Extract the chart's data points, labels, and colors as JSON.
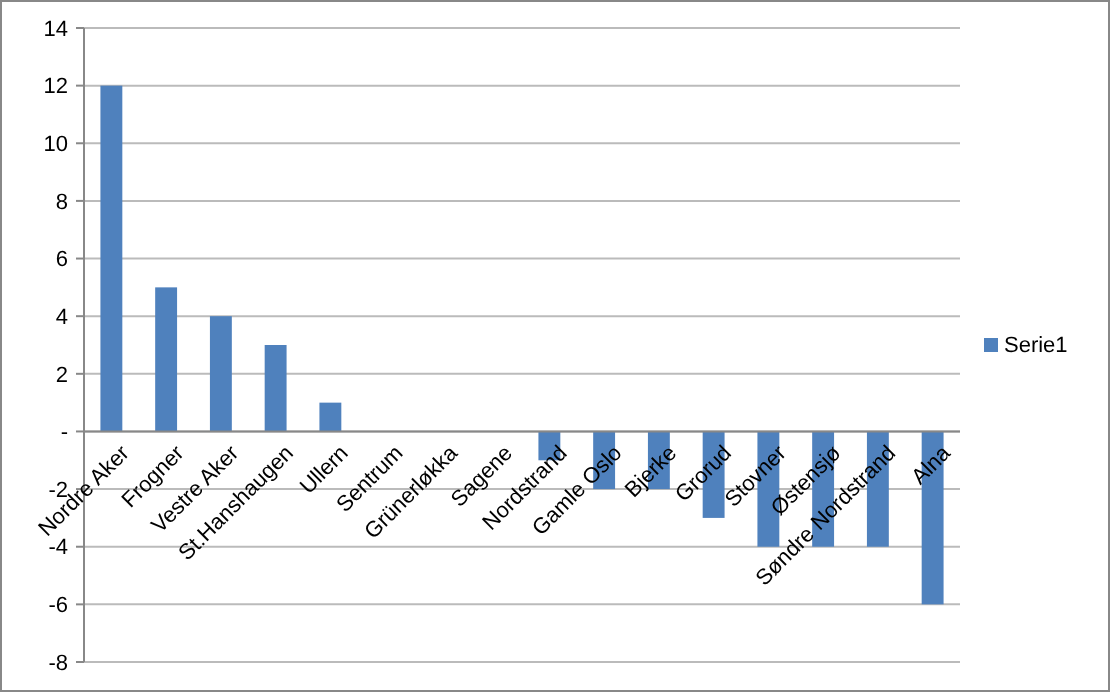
{
  "chart_data": {
    "type": "bar",
    "categories": [
      "Nordre Aker",
      "Frogner",
      "Vestre Aker",
      "St.Hanshaugen",
      "Ullern",
      "Sentrum",
      "Grünerløkka",
      "Sagene",
      "Nordstrand",
      "Gamle Oslo",
      "Bjerke",
      "Grorud",
      "Stovner",
      "Østensjø",
      "Søndre Nordstrand",
      "Alna"
    ],
    "series": [
      {
        "name": "Serie1",
        "color": "#4f81bd",
        "values": [
          12,
          5,
          4,
          3,
          1,
          0,
          0,
          0,
          -1,
          -2,
          -2,
          -3,
          -4,
          -4,
          -4,
          -6
        ]
      }
    ],
    "ylim": [
      -8,
      14
    ],
    "yticks": [
      -8,
      -6,
      -4,
      -2,
      {
        "value": 0,
        "label": "-"
      },
      2,
      4,
      6,
      8,
      10,
      12,
      14
    ],
    "grid": "y",
    "legend": "right"
  }
}
